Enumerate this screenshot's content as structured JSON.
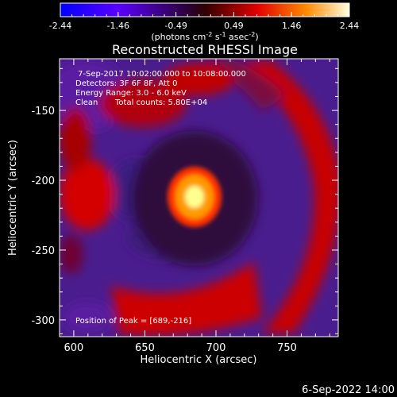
{
  "chart_data": {
    "type": "heatmap",
    "title": "Reconstructed RHESSI Image",
    "xlabel": "Heliocentric X (arcsec)",
    "ylabel": "Heliocentric Y (arcsec)",
    "xlim": [
      590,
      786
    ],
    "ylim": [
      -312,
      -113
    ],
    "x_ticks": [
      600,
      650,
      700,
      750
    ],
    "y_ticks": [
      -150,
      -200,
      -250,
      -300
    ],
    "colorbar": {
      "range": [
        -2.44,
        2.44
      ],
      "ticks": [
        "-2.44",
        "-1.46",
        "-0.49",
        "0.49",
        "1.46",
        "2.44"
      ],
      "unit_parts": [
        "(photons cm",
        "-2",
        " s",
        "-1",
        " asec",
        "-2",
        ")"
      ]
    },
    "annotations": {
      "time_range": "7-Sep-2017 10:02:00.000 to 10:08:00.000",
      "detectors": "Detectors: 3F 6F 8F, Att 0",
      "energy_range": "Energy Range: 3.0 - 6.0 keV",
      "algorithm": "Clean",
      "total_counts": "Total counts: 5.80E+04",
      "peak_position": "Position of Peak = [689,-216]"
    },
    "peak": {
      "x": 689,
      "y": -216,
      "value": 2.44
    },
    "grid": false
  },
  "footer": {
    "timestamp": "6-Sep-2022 14:00"
  },
  "colors": {
    "background": "#000000",
    "foreground": "#ffffff",
    "colormap": [
      "#0000ff",
      "#7a00ff",
      "#4b1a8a",
      "#3a0a3a",
      "#c80000",
      "#ff2a00",
      "#ff9a00",
      "#ffff80"
    ]
  }
}
